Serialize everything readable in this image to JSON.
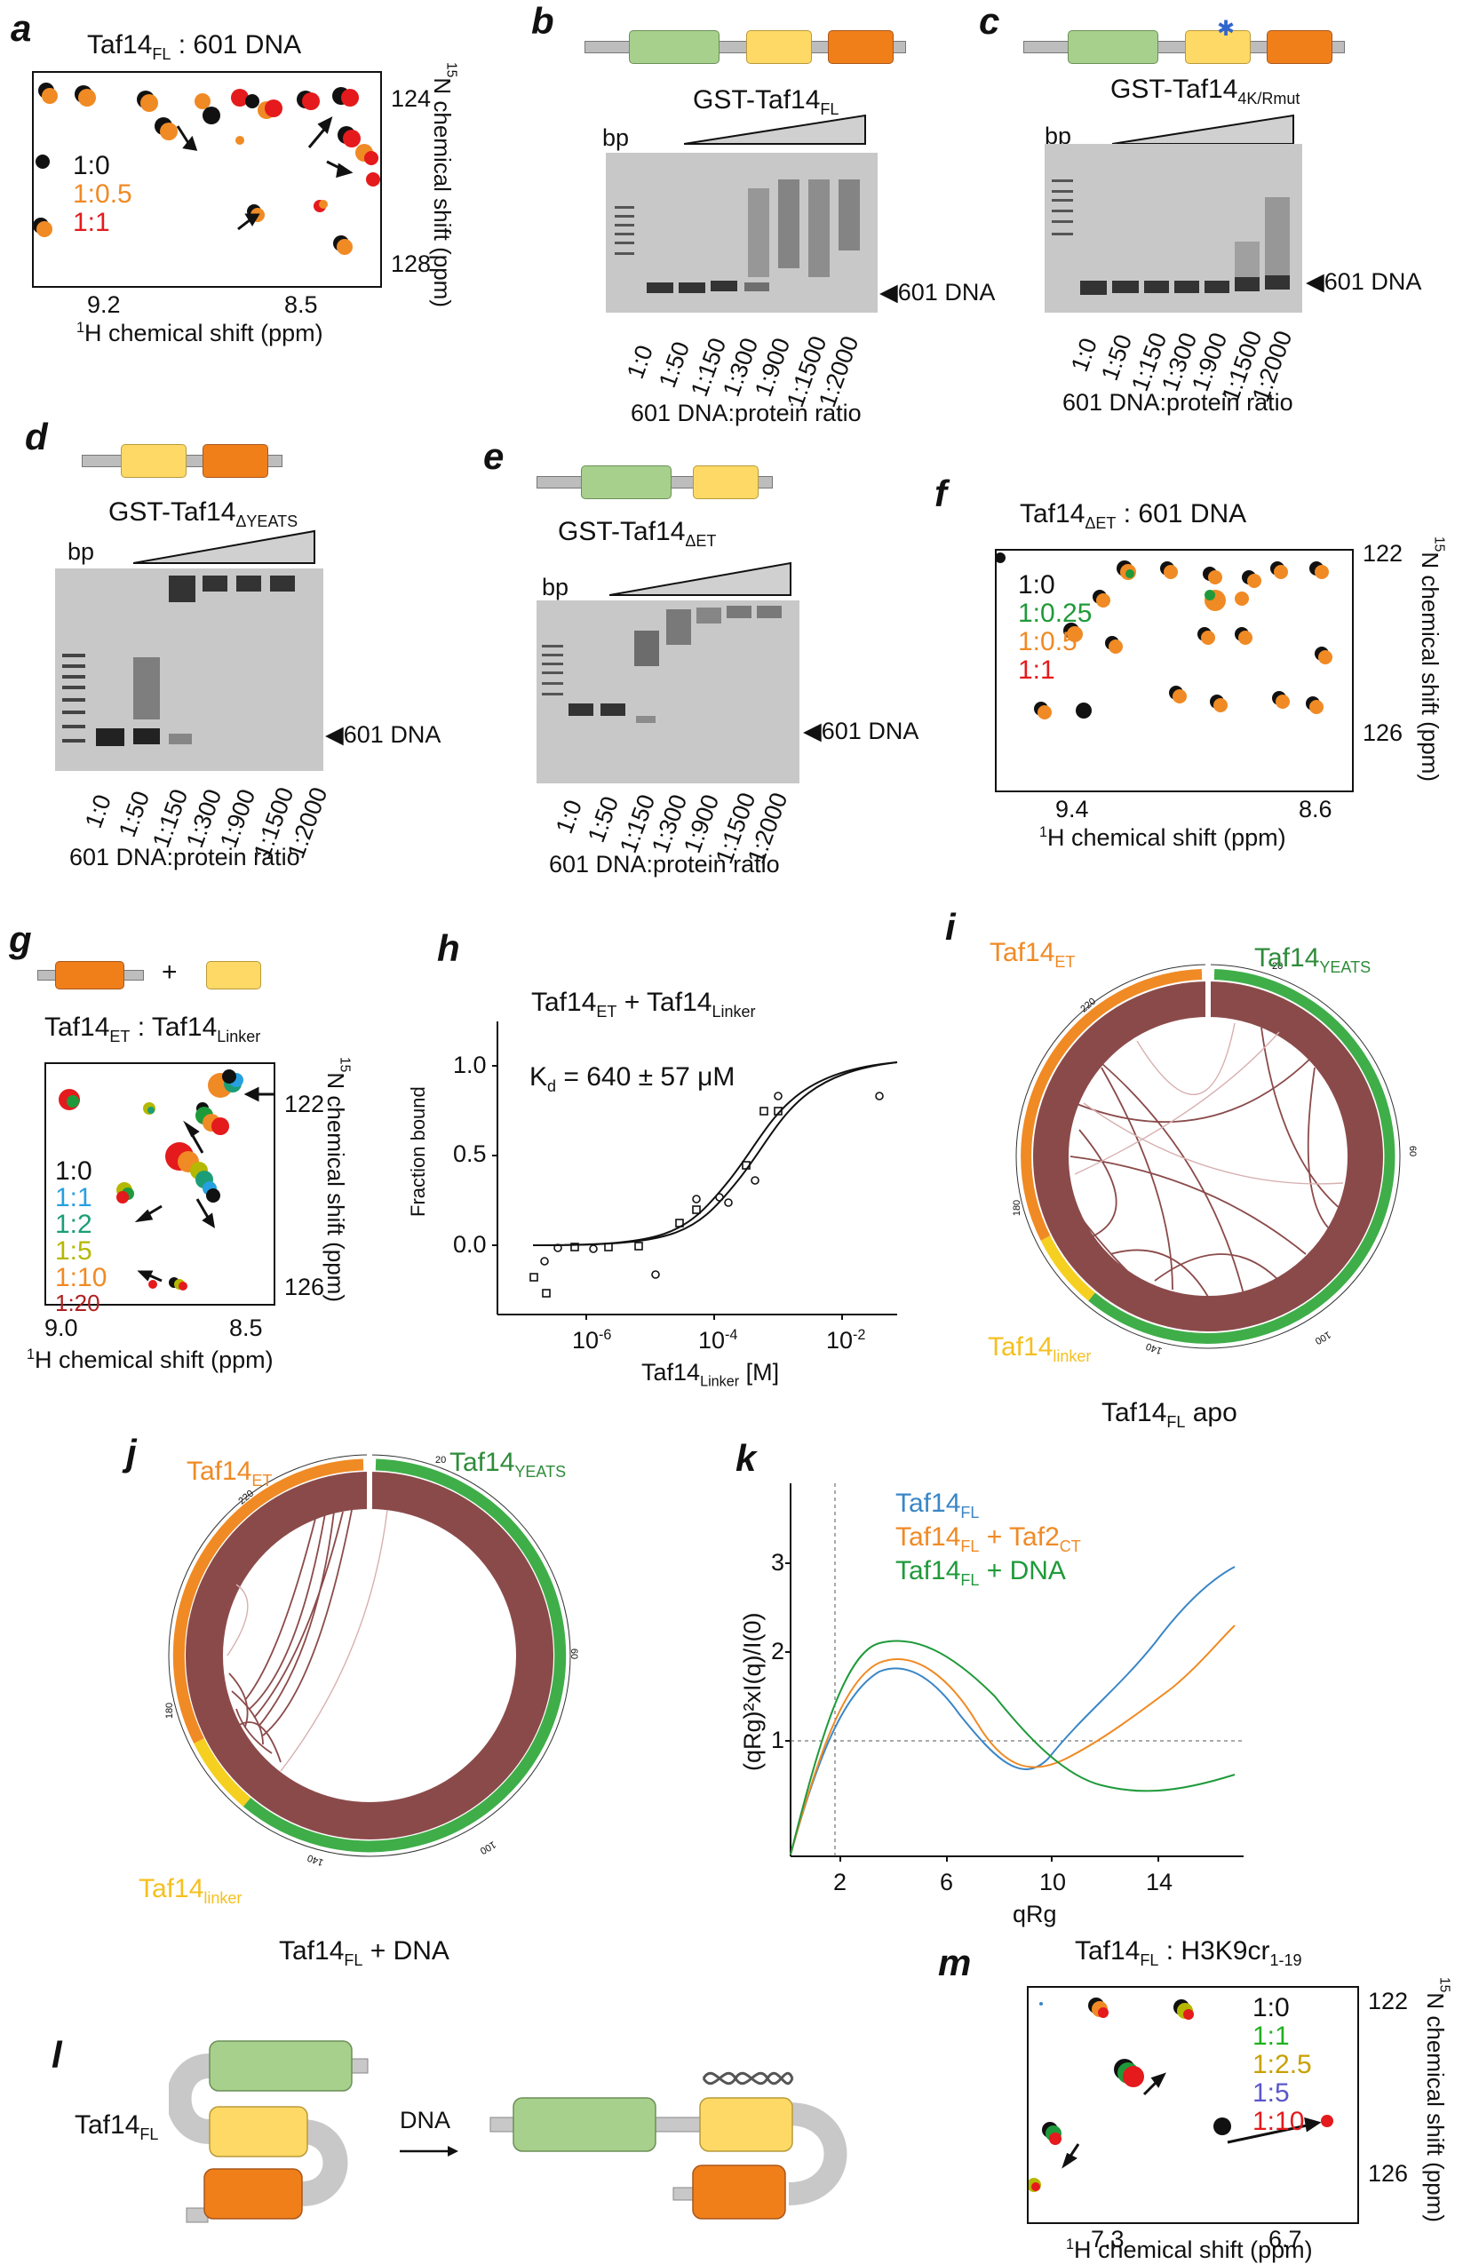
{
  "colors": {
    "green": "#a8d08d",
    "yellow": "#ffd966",
    "orange": "#f07f1a",
    "maroon": "#8b4a4a",
    "blue": "#3a86c6",
    "legendOrange": "#f08a24",
    "legendGreen": "#1f9a3a",
    "black": "#111111",
    "red": "#e41a1c",
    "lightblue": "#27a0e0",
    "teal": "#1b9e77",
    "olive": "#b5b800",
    "purple": "#5b57c8"
  },
  "a": {
    "label": "a",
    "title_main": "Taf14",
    "title_sub": "FL",
    "title_rest": " : 601 DNA",
    "legend": [
      "1:0",
      "1:0.5",
      "1:1"
    ],
    "x_ticks": [
      "9.2",
      "8.5"
    ],
    "y_ticks": [
      "124",
      "128"
    ],
    "xlabel_sup": "1",
    "xlabel": "H chemical shift (ppm)",
    "ylabel_sup": "15",
    "ylabel": "N chemical shift (ppm)"
  },
  "b": {
    "label": "b",
    "title_main": "GST-Taf14",
    "title_sub": "FL",
    "bp": "bp",
    "band": "601 DNA",
    "ratios": [
      "1:0",
      "1:50",
      "1:150",
      "1:300",
      "1:900",
      "1:1500",
      "1:2000"
    ],
    "xlabel": "601 DNA:protein ratio"
  },
  "c": {
    "label": "c",
    "title_main": "GST-Taf14",
    "title_sub": "4K/Rmut",
    "bp": "bp",
    "band": "601 DNA",
    "ratios": [
      "1:0",
      "1:50",
      "1:150",
      "1:300",
      "1:900",
      "1:1500",
      "1:2000"
    ],
    "xlabel": "601 DNA:protein ratio"
  },
  "d": {
    "label": "d",
    "title_main": "GST-Taf14",
    "title_sub": "ΔYEATS",
    "bp": "bp",
    "band": "601 DNA",
    "ratios": [
      "1:0",
      "1:50",
      "1:150",
      "1:300",
      "1:900",
      "1:1500",
      "1:2000"
    ],
    "xlabel": "601 DNA:protein ratio"
  },
  "e": {
    "label": "e",
    "title_main": "GST-Taf14",
    "title_sub": "ΔET",
    "bp": "bp",
    "band": "601 DNA",
    "ratios": [
      "1:0",
      "1:50",
      "1:150",
      "1:300",
      "1:900",
      "1:1500",
      "1:2000"
    ],
    "xlabel": "601 DNA:protein ratio"
  },
  "f": {
    "label": "f",
    "title_main": "Taf14",
    "title_sub": "ΔET",
    "title_rest": " : 601 DNA",
    "legend": [
      "1:0",
      "1:0.25",
      "1:0.5",
      "1:1"
    ],
    "x_ticks": [
      "9.4",
      "8.6"
    ],
    "y_ticks": [
      "122",
      "126"
    ],
    "xlabel_sup": "1",
    "xlabel": "H chemical shift (ppm)",
    "ylabel_sup": "15",
    "ylabel": "N chemical shift (ppm)"
  },
  "g": {
    "label": "g",
    "plus": "+",
    "title_main": "Taf14",
    "title_sub": "ET",
    "title_mid": " : Taf14",
    "title_sub2": "Linker",
    "legend": [
      "1:0",
      "1:1",
      "1:2",
      "1:5",
      "1:10",
      "1:20"
    ],
    "x_ticks": [
      "9.0",
      "8.5"
    ],
    "y_ticks": [
      "122",
      "126"
    ],
    "xlabel_sup": "1",
    "xlabel": "H chemical shift (ppm)",
    "ylabel_sup": "15",
    "ylabel": "N chemical shift (ppm)"
  },
  "h": {
    "label": "h",
    "title_a": "Taf14",
    "title_a_sub": "ET",
    "title_b": " + Taf14",
    "title_b_sub": "Linker",
    "kd_main": "K",
    "kd_sub": "d",
    "kd_rest": " = 640 ± 57 μM",
    "ylabel": "Fraction bound",
    "xlabel_main": "Taf14",
    "xlabel_sub": "Linker",
    "xlabel_rest": " [M]",
    "y_ticks": [
      "1.0",
      "0.5",
      "0.0"
    ],
    "x_ticks": [
      "10",
      "10",
      "10"
    ],
    "x_ticks_exp": [
      "-6",
      "-4",
      "-2"
    ]
  },
  "i": {
    "label": "i",
    "caption_main": "Taf14",
    "caption_sub": "FL",
    "caption_rest": " apo",
    "et_main": "Taf14",
    "et_sub": "ET",
    "yeats_main": "Taf14",
    "yeats_sub": "YEATS",
    "linker_main": "Taf14",
    "linker_sub": "linker",
    "ticks": [
      "20",
      "60",
      "100",
      "140",
      "180",
      "220"
    ]
  },
  "j": {
    "label": "j",
    "caption_main": "Taf14",
    "caption_sub": "FL",
    "caption_rest": " + DNA",
    "et_main": "Taf14",
    "et_sub": "ET",
    "yeats_main": "Taf14",
    "yeats_sub": "YEATS",
    "linker_main": "Taf14",
    "linker_sub": "linker",
    "ticks": [
      "20",
      "60",
      "100",
      "140",
      "180",
      "220"
    ]
  },
  "k": {
    "label": "k",
    "legend": [
      {
        "main": "Taf14",
        "sub": "FL",
        "rest": ""
      },
      {
        "main": "Taf14",
        "sub": "FL",
        "rest": " + Taf2",
        "sub2": "CT"
      },
      {
        "main": "Taf14",
        "sub": "FL",
        "rest": " + DNA"
      }
    ],
    "ylabel": "(qRg)²xI(q)/I(0)",
    "xlabel": "qRg",
    "y_ticks": [
      "3",
      "2",
      "1"
    ],
    "x_ticks": [
      "2",
      "6",
      "10",
      "14"
    ]
  },
  "l": {
    "label": "l",
    "taf_main": "Taf14",
    "taf_sub": "FL",
    "arrow_label": "DNA"
  },
  "m": {
    "label": "m",
    "title_main": "Taf14",
    "title_sub": "FL",
    "title_rest": " : H3K9cr",
    "title_sub2": "1-19",
    "legend": [
      "1:0",
      "1:1",
      "1:2.5",
      "1:5",
      "1:10"
    ],
    "x_ticks": [
      "7.3",
      "6.7"
    ],
    "y_ticks": [
      "122",
      "126"
    ],
    "xlabel_sup": "1",
    "xlabel": "H chemical shift (ppm)",
    "ylabel_sup": "15",
    "ylabel": "N chemical shift (ppm)"
  }
}
